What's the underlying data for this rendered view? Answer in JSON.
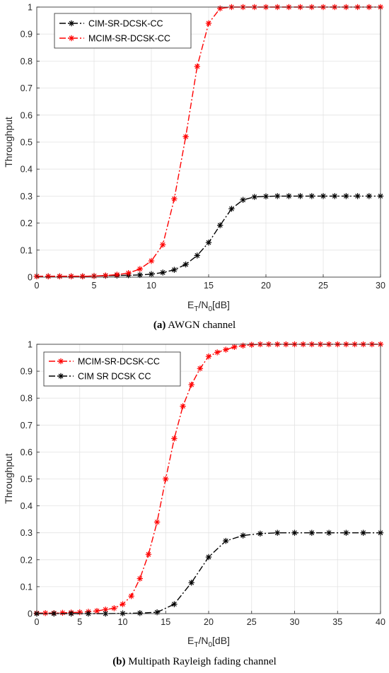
{
  "chart_data": [
    {
      "type": "line",
      "ylabel": "Throughput",
      "xlabel_parts": {
        "main": "E",
        "sub1": "T",
        "mid": "/N",
        "sub2": "0",
        "tail": "[dB]"
      },
      "xlim": [
        0,
        30
      ],
      "ylim": [
        0,
        1
      ],
      "xticks": [
        "0",
        "5",
        "10",
        "15",
        "20",
        "25",
        "30"
      ],
      "yticks": [
        "0",
        "0.1",
        "0.2",
        "0.3",
        "0.4",
        "0.5",
        "0.6",
        "0.7",
        "0.8",
        "0.9",
        "1"
      ],
      "grid": true,
      "legend_position": "top-left",
      "caption": {
        "tag": "(a)",
        "text": "AWGN channel"
      },
      "series": [
        {
          "name": "CIM-SR-DCSK-CC",
          "color": "#000000",
          "marker": "asterisk",
          "x": [
            0,
            1,
            2,
            3,
            4,
            5,
            6,
            7,
            8,
            9,
            10,
            11,
            12,
            13,
            14,
            15,
            16,
            17,
            18,
            19,
            20,
            21,
            22,
            23,
            24,
            25,
            26,
            27,
            28,
            29,
            30
          ],
          "y": [
            0.003,
            0.003,
            0.003,
            0.003,
            0.003,
            0.004,
            0.005,
            0.006,
            0.007,
            0.008,
            0.011,
            0.017,
            0.027,
            0.047,
            0.08,
            0.128,
            0.192,
            0.253,
            0.286,
            0.297,
            0.299,
            0.3,
            0.3,
            0.3,
            0.3,
            0.3,
            0.3,
            0.3,
            0.3,
            0.3,
            0.3
          ]
        },
        {
          "name": "MCIM-SR-DCSK-CC",
          "color": "#ff0000",
          "marker": "asterisk",
          "x": [
            0,
            1,
            2,
            3,
            4,
            5,
            6,
            7,
            8,
            9,
            10,
            11,
            12,
            13,
            14,
            15,
            16,
            17,
            18,
            19,
            20,
            21,
            22,
            23,
            24,
            25,
            26,
            27,
            28,
            29,
            30
          ],
          "y": [
            0.003,
            0.003,
            0.003,
            0.003,
            0.003,
            0.004,
            0.006,
            0.009,
            0.015,
            0.03,
            0.06,
            0.12,
            0.29,
            0.52,
            0.78,
            0.94,
            0.995,
            1,
            1,
            1,
            1,
            1,
            1,
            1,
            1,
            1,
            1,
            1,
            1,
            1,
            1
          ]
        }
      ]
    },
    {
      "type": "line",
      "ylabel": "Throughput",
      "xlabel_parts": {
        "main": "E",
        "sub1": "T",
        "mid": "/N",
        "sub2": "0",
        "tail": "[dB]"
      },
      "xlim": [
        0,
        40
      ],
      "ylim": [
        0,
        1
      ],
      "xticks": [
        "0",
        "5",
        "10",
        "15",
        "20",
        "25",
        "30",
        "35",
        "40"
      ],
      "yticks": [
        "0",
        "0.1",
        "0.2",
        "0.3",
        "0.4",
        "0.5",
        "0.6",
        "0.7",
        "0.8",
        "0.9",
        "1"
      ],
      "grid": true,
      "legend_position": "top-left",
      "caption": {
        "tag": "(b)",
        "text": "Multipath Rayleigh fading channel"
      },
      "series": [
        {
          "name": "MCIM-SR-DCSK-CC",
          "color": "#ff0000",
          "marker": "asterisk",
          "x": [
            0,
            1,
            2,
            3,
            4,
            5,
            6,
            7,
            8,
            9,
            10,
            11,
            12,
            13,
            14,
            15,
            16,
            17,
            18,
            19,
            20,
            21,
            22,
            23,
            24,
            25,
            26,
            27,
            28,
            29,
            30,
            31,
            32,
            33,
            34,
            35,
            36,
            37,
            38,
            39,
            40
          ],
          "y": [
            0.002,
            0.002,
            0.002,
            0.003,
            0.004,
            0.005,
            0.007,
            0.01,
            0.015,
            0.02,
            0.035,
            0.065,
            0.13,
            0.22,
            0.34,
            0.5,
            0.65,
            0.77,
            0.85,
            0.91,
            0.955,
            0.97,
            0.98,
            0.99,
            0.995,
            0.998,
            1,
            1,
            1,
            1,
            1,
            1,
            1,
            1,
            1,
            1,
            1,
            1,
            1,
            1,
            1
          ]
        },
        {
          "name": "CIM SR DCSK CC",
          "color": "#000000",
          "marker": "asterisk",
          "x": [
            0,
            2,
            4,
            6,
            8,
            10,
            12,
            14,
            16,
            18,
            20,
            22,
            24,
            26,
            28,
            30,
            32,
            34,
            36,
            38,
            40
          ],
          "y": [
            0,
            0,
            0,
            0,
            0,
            0.001,
            0.002,
            0.005,
            0.035,
            0.115,
            0.21,
            0.27,
            0.29,
            0.297,
            0.3,
            0.3,
            0.3,
            0.3,
            0.3,
            0.3,
            0.3
          ]
        }
      ]
    }
  ]
}
